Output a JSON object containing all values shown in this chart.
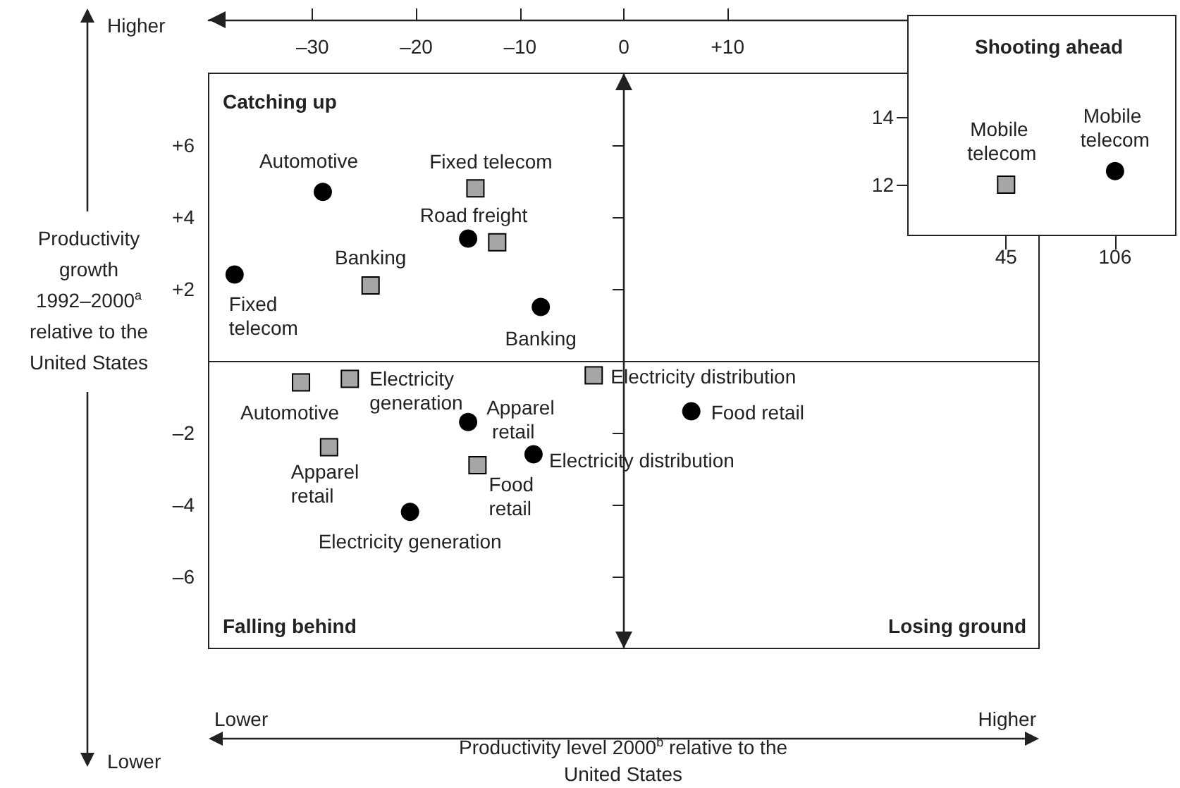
{
  "chart_data": [
    {
      "type": "scatter",
      "xlabel": "Productivity level 2000$^{b}$ relative to the United States",
      "ylabel": "Productivity growth 1992–2000$^{a}$ relative to the United States",
      "xlim": [
        -40,
        40
      ],
      "xticks": [
        {
          "value": -30,
          "label": "–30"
        },
        {
          "value": -20,
          "label": "–20"
        },
        {
          "value": -10,
          "label": "–10"
        },
        {
          "value": 0,
          "label": "0"
        },
        {
          "value": 10,
          "label": "+10"
        }
      ],
      "ylim": [
        -8,
        8
      ],
      "yticks": [
        {
          "value": -6,
          "label": "–6"
        },
        {
          "value": -4,
          "label": "–4"
        },
        {
          "value": -2,
          "label": "–2"
        },
        {
          "value": 2,
          "label": "+2"
        },
        {
          "value": 4,
          "label": "+4"
        },
        {
          "value": 6,
          "label": "+6"
        }
      ],
      "series": [
        {
          "color": "#000000",
          "marker": "circle",
          "x": [
            -29,
            -15,
            -37.5,
            -8,
            -15,
            -8.7,
            -20.6,
            6.5
          ],
          "values": [
            4.7,
            3.4,
            2.4,
            1.5,
            -1.7,
            -2.6,
            -4.2,
            -1.4
          ]
        },
        {
          "color": "#a6a6a6",
          "marker": "square",
          "x": [
            -14.3,
            -12.2,
            -24.4,
            -31.1,
            -26.4,
            -2.9,
            -28.4,
            -14.1
          ],
          "values": [
            4.8,
            3.3,
            2.1,
            -0.6,
            -0.5,
            -0.4,
            -2.4,
            -2.9
          ]
        }
      ],
      "ref_lines": [
        {
          "axis": "y",
          "value": 0
        }
      ],
      "annotations": [
        "Catching up",
        "Falling behind",
        "Losing ground",
        "Higher",
        "Lower",
        "Lower",
        "Higher",
        {
          "text": "Automotive",
          "x": -29,
          "y": 4.7
        },
        {
          "text": "Road freight",
          "x": -15,
          "y": 3.4
        },
        {
          "text": "Fixed telecom",
          "x": -37.5,
          "y": 2.4
        },
        {
          "text": "Banking",
          "x": -8,
          "y": 1.5
        },
        {
          "text": "Apparel retail",
          "x": -15,
          "y": -1.7
        },
        {
          "text": "Electricity distribution",
          "x": -8.7,
          "y": -2.6
        },
        {
          "text": "Electricity generation",
          "x": -20.6,
          "y": -4.2
        },
        {
          "text": "Food retail",
          "x": 6.5,
          "y": -1.4
        },
        {
          "text": "Fixed telecom",
          "x": -14.3,
          "y": 4.8
        },
        {
          "text": "Banking",
          "x": -24.4,
          "y": 2.1
        },
        {
          "text": "Automotive",
          "x": -31.1,
          "y": -0.6
        },
        {
          "text": "Electricity generation",
          "x": -26.4,
          "y": -0.5
        },
        {
          "text": "Electricity distribution",
          "x": -2.9,
          "y": -0.4
        },
        {
          "text": "Apparel retail",
          "x": -28.4,
          "y": -2.4
        },
        {
          "text": "Food retail",
          "x": -14.1,
          "y": -2.9
        }
      ]
    },
    {
      "type": "scatter",
      "title": "Shooting ahead",
      "xlim": [
        -10,
        140
      ],
      "xticks": [
        45,
        106
      ],
      "ylim": [
        10.5,
        17
      ],
      "yticks": [
        12,
        14
      ],
      "series": [
        {
          "color": "#a6a6a6",
          "marker": "square",
          "x": [
            45
          ],
          "values": [
            12
          ]
        },
        {
          "color": "#000000",
          "marker": "circle",
          "x": [
            106
          ],
          "values": [
            12.4
          ]
        }
      ],
      "annotations": [
        {
          "text": "Mobile telecom",
          "x": 45,
          "y": 12
        },
        {
          "text": "Mobile telecom",
          "x": 106,
          "y": 12.4
        }
      ]
    }
  ]
}
